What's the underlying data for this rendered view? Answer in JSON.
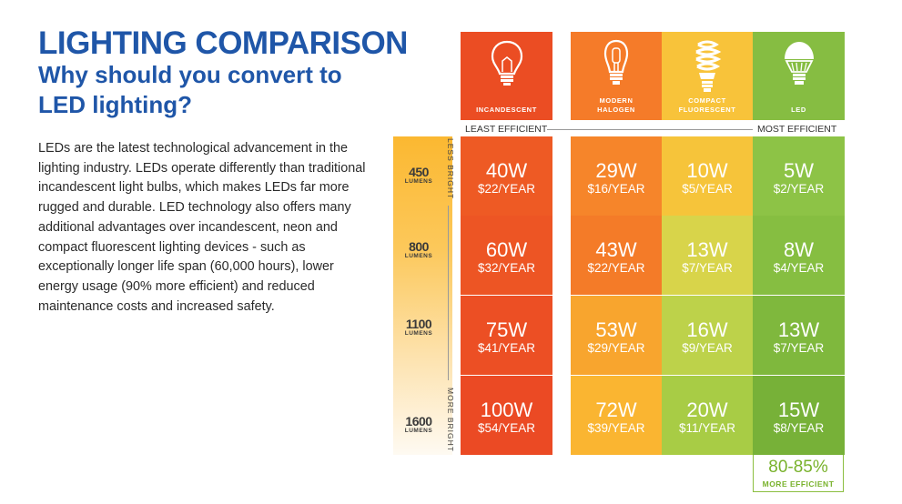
{
  "heading": {
    "title": "LIGHTING COMPARISON",
    "subtitle": "Why should you convert to LED lighting?"
  },
  "description": "LEDs are the latest technological advancement in the lighting industry. LEDs operate differently than traditional incandescent light bulbs, which makes LEDs far more rugged and durable. LED technology also offers many additional advantages over incandescent, neon and compact fluorescent lighting devices - such as exceptionally longer life span (60,000 hours), lower energy usage (90% more efficient) and reduced maintenance costs and increased safety.",
  "brightness": {
    "less_label": "LESS BRIGHT",
    "more_label": "MORE BRIGHT",
    "unit": "LUMENS"
  },
  "efficiency": {
    "least_label": "LEAST EFFICIENT",
    "most_label": "MOST EFFICIENT",
    "led_percent": "80-85%",
    "led_percent_label": "MORE EFFICIENT"
  },
  "chart_data": {
    "type": "table",
    "title": "LIGHTING COMPARISON",
    "row_header": "LUMENS",
    "rows": [
      "450",
      "800",
      "1100",
      "1600"
    ],
    "columns": [
      {
        "name": "INCANDESCENT",
        "icon": "incandescent-bulb-icon",
        "watts": [
          "40W",
          "60W",
          "75W",
          "100W"
        ],
        "cost": [
          "$22/YEAR",
          "$32/YEAR",
          "$41/YEAR",
          "$54/YEAR"
        ]
      },
      {
        "name": "MODERN HALOGEN",
        "icon": "halogen-bulb-icon",
        "watts": [
          "29W",
          "43W",
          "53W",
          "72W"
        ],
        "cost": [
          "$16/YEAR",
          "$22/YEAR",
          "$29/YEAR",
          "$39/YEAR"
        ]
      },
      {
        "name": "COMPACT FLUORESCENT",
        "icon": "cfl-bulb-icon",
        "watts": [
          "10W",
          "13W",
          "16W",
          "20W"
        ],
        "cost": [
          "$5/YEAR",
          "$7/YEAR",
          "$9/YEAR",
          "$11/YEAR"
        ]
      },
      {
        "name": "LED",
        "icon": "led-bulb-icon",
        "watts": [
          "5W",
          "8W",
          "13W",
          "15W"
        ],
        "cost": [
          "$2/YEAR",
          "$4/YEAR",
          "$7/YEAR",
          "$8/YEAR"
        ]
      }
    ]
  },
  "colors": {
    "title": "#1f56a8",
    "incandescent": [
      "#ee5a24",
      "#ed5524",
      "#ec4f24",
      "#eb4a24"
    ],
    "halogen": [
      "#f6852a",
      "#f47b28",
      "#f8a52e",
      "#fab531"
    ],
    "cfl": [
      "#f6c43a",
      "#d8d44a",
      "#bdd24a",
      "#a8cc45"
    ],
    "led": [
      "#8dc346",
      "#86be41",
      "#7fb83d",
      "#77b138"
    ],
    "header_incandescent": "#eb4d23",
    "header_halogen": "#f57b29",
    "header_cfl": "#f8c33a",
    "header_led": "#86bd42"
  }
}
